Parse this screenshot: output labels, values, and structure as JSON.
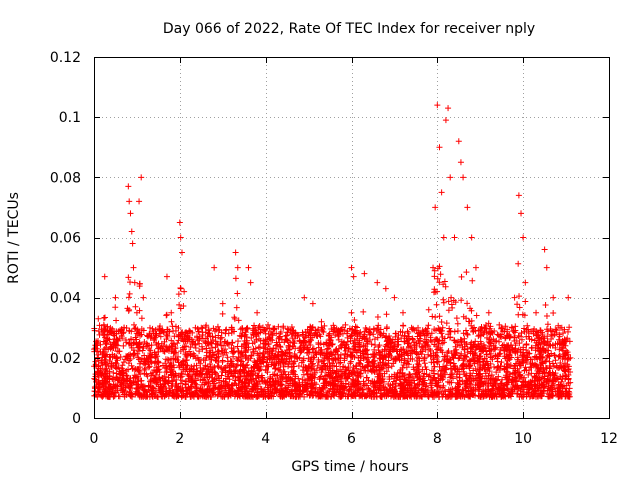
{
  "chart_data": {
    "type": "scatter",
    "marker": "plus",
    "title": "Day 066 of 2022, Rate Of TEC Index for receiver nply",
    "xlabel": "GPS time / hours",
    "ylabel": "ROTI / TECUs",
    "xlim": [
      0,
      12
    ],
    "ylim": [
      0,
      0.12
    ],
    "xticks": [
      0,
      2,
      4,
      6,
      8,
      10,
      12
    ],
    "xtick_labels": [
      "0",
      "2",
      "4",
      "6",
      "8",
      "10",
      "12"
    ],
    "yticks": [
      0,
      0.02,
      0.04,
      0.06,
      0.08,
      0.1,
      0.12
    ],
    "ytick_labels": [
      "0",
      "0.02",
      "0.04",
      "0.06",
      "0.08",
      "0.1",
      "0.12"
    ],
    "grid": true,
    "color": "#ff0000",
    "series": [
      {
        "name": "ROTI",
        "x_range": [
          0.0,
          11.1
        ],
        "points_estimated": [
          [
            0.05,
            0.012
          ],
          [
            0.1,
            0.033
          ],
          [
            0.15,
            0.022
          ],
          [
            0.25,
            0.047
          ],
          [
            0.3,
            0.018
          ],
          [
            0.45,
            0.015
          ],
          [
            0.5,
            0.04
          ],
          [
            0.55,
            0.026
          ],
          [
            0.7,
            0.03
          ],
          [
            0.8,
            0.077
          ],
          [
            0.82,
            0.072
          ],
          [
            0.85,
            0.068
          ],
          [
            0.88,
            0.062
          ],
          [
            0.9,
            0.058
          ],
          [
            0.92,
            0.05
          ],
          [
            0.95,
            0.045
          ],
          [
            1.0,
            0.035
          ],
          [
            1.05,
            0.072
          ],
          [
            1.1,
            0.08
          ],
          [
            1.15,
            0.04
          ],
          [
            1.3,
            0.028
          ],
          [
            1.5,
            0.022
          ],
          [
            1.7,
            0.047
          ],
          [
            1.8,
            0.035
          ],
          [
            2.0,
            0.065
          ],
          [
            2.02,
            0.06
          ],
          [
            2.05,
            0.055
          ],
          [
            2.1,
            0.042
          ],
          [
            2.3,
            0.025
          ],
          [
            2.5,
            0.03
          ],
          [
            2.8,
            0.05
          ],
          [
            3.0,
            0.038
          ],
          [
            3.3,
            0.055
          ],
          [
            3.35,
            0.05
          ],
          [
            3.6,
            0.05
          ],
          [
            3.65,
            0.045
          ],
          [
            3.8,
            0.035
          ],
          [
            4.0,
            0.028
          ],
          [
            4.3,
            0.022
          ],
          [
            4.6,
            0.02
          ],
          [
            4.9,
            0.04
          ],
          [
            5.1,
            0.038
          ],
          [
            5.3,
            0.032
          ],
          [
            5.6,
            0.03
          ],
          [
            5.8,
            0.028
          ],
          [
            6.0,
            0.05
          ],
          [
            6.05,
            0.047
          ],
          [
            6.3,
            0.048
          ],
          [
            6.6,
            0.045
          ],
          [
            6.8,
            0.043
          ],
          [
            7.0,
            0.04
          ],
          [
            7.2,
            0.035
          ],
          [
            7.4,
            0.03
          ],
          [
            7.6,
            0.028
          ],
          [
            7.8,
            0.036
          ],
          [
            7.9,
            0.05
          ],
          [
            7.95,
            0.07
          ],
          [
            8.0,
            0.104
          ],
          [
            8.05,
            0.09
          ],
          [
            8.1,
            0.075
          ],
          [
            8.15,
            0.06
          ],
          [
            8.2,
            0.099
          ],
          [
            8.25,
            0.103
          ],
          [
            8.3,
            0.08
          ],
          [
            8.4,
            0.06
          ],
          [
            8.5,
            0.092
          ],
          [
            8.55,
            0.085
          ],
          [
            8.6,
            0.08
          ],
          [
            8.7,
            0.07
          ],
          [
            8.8,
            0.06
          ],
          [
            8.9,
            0.05
          ],
          [
            9.2,
            0.035
          ],
          [
            9.5,
            0.03
          ],
          [
            9.8,
            0.04
          ],
          [
            9.9,
            0.074
          ],
          [
            9.95,
            0.068
          ],
          [
            10.0,
            0.06
          ],
          [
            10.05,
            0.045
          ],
          [
            10.3,
            0.035
          ],
          [
            10.5,
            0.056
          ],
          [
            10.55,
            0.05
          ],
          [
            10.7,
            0.04
          ],
          [
            10.9,
            0.03
          ],
          [
            11.05,
            0.04
          ],
          [
            11.1,
            0.02
          ]
        ]
      }
    ]
  }
}
